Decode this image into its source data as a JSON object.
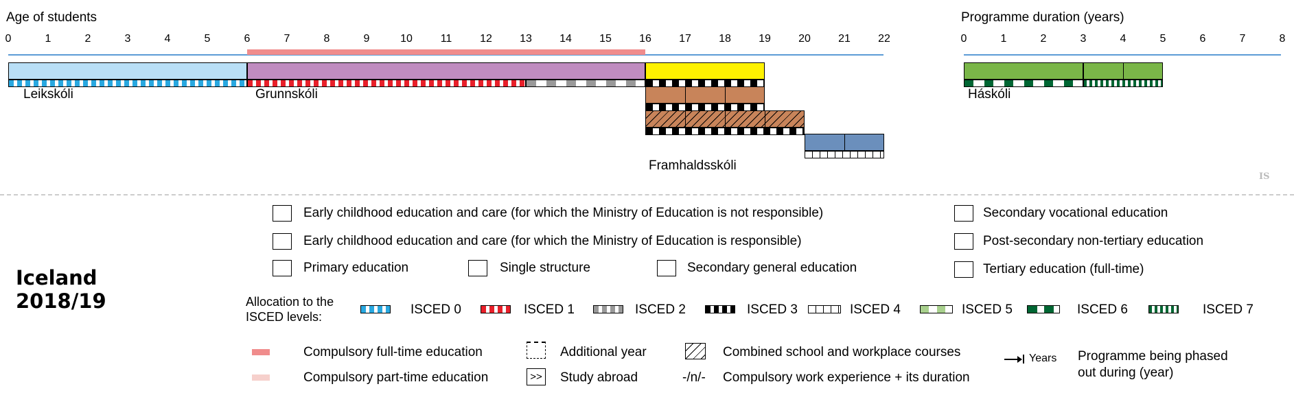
{
  "age_axis": {
    "title": "Age of students",
    "ticks": [
      "0",
      "1",
      "2",
      "3",
      "4",
      "5",
      "6",
      "7",
      "8",
      "9",
      "10",
      "11",
      "12",
      "13",
      "14",
      "15",
      "16",
      "17",
      "18",
      "19",
      "20",
      "21",
      "22"
    ]
  },
  "duration_axis": {
    "title": "Programme duration (years)",
    "ticks": [
      "0",
      "1",
      "2",
      "3",
      "4",
      "5",
      "6",
      "7",
      "8"
    ]
  },
  "compulsory_full_time": {
    "from_age": 6,
    "to_age": 16,
    "color": "#f08c8c"
  },
  "programmes": [
    {
      "name": "Leikskóli",
      "type": "ecec-ministry",
      "from": 0,
      "to": 6,
      "isced": "0",
      "color": "#b9dff6",
      "year_dividers": []
    },
    {
      "name": "Grunnskóli",
      "type": "single-structure",
      "from": 6,
      "to": 16,
      "isced_segments": [
        {
          "isced": "1",
          "from": 6,
          "to": 13
        },
        {
          "isced": "2",
          "from": 13,
          "to": 16
        }
      ],
      "color": "#c08cc0",
      "year_dividers": []
    },
    {
      "type": "secondary-general",
      "from": 16,
      "to": 19,
      "isced": "3",
      "color": "#fff200",
      "year_dividers": []
    },
    {
      "type": "secondary-vocational",
      "from": 16,
      "to": 19,
      "isced": "3",
      "color": "#c8845a",
      "year_dividers": [
        17,
        18
      ]
    },
    {
      "type": "secondary-vocational-combined",
      "from": 16,
      "to": 20,
      "isced": "3",
      "color": "#c8845a",
      "combined": true,
      "year_dividers": [
        17,
        18,
        19
      ]
    },
    {
      "type": "post-secondary",
      "from": 20,
      "to": 22,
      "isced": "4",
      "color": "#6b8fbc",
      "year_dividers": [
        21
      ]
    }
  ],
  "framhaldsskoli_label": "Framhaldsskóli",
  "tertiary": {
    "name": "Háskóli",
    "color": "#7ab648",
    "bachelor": {
      "from": 0,
      "to": 3,
      "isced": "6"
    },
    "master": {
      "from": 3,
      "to": 5,
      "isced": "7",
      "year_dividers": [
        4
      ]
    }
  },
  "country_code": "IS",
  "country": {
    "name": "Iceland",
    "year": "2018/19"
  },
  "legend": {
    "ecec_not_responsible": {
      "label": "Early childhood education and care (for which the Ministry of Education is not responsible)",
      "color": "#00a6e0"
    },
    "ecec_responsible": {
      "label": "Early childhood education and care (for which the Ministry of Education is responsible)",
      "color": "#b9dff6"
    },
    "primary": {
      "label": "Primary education",
      "color": "#f39c1f"
    },
    "single_structure": {
      "label": "Single structure",
      "color": "#c08cc0"
    },
    "secondary_general": {
      "label": "Secondary general education",
      "color": "#fff200"
    },
    "secondary_vocational": {
      "label": "Secondary vocational education",
      "color": "#c8845a"
    },
    "post_secondary": {
      "label": "Post-secondary non-tertiary education",
      "color": "#6b8fbc"
    },
    "tertiary": {
      "label": "Tertiary education (full-time)",
      "color": "#7ab648"
    },
    "allocation_title": "Allocation to the ISCED levels:",
    "isced_levels": [
      "ISCED 0",
      "ISCED 1",
      "ISCED 2",
      "ISCED 3",
      "ISCED 4",
      "ISCED 5",
      "ISCED 6",
      "ISCED 7"
    ],
    "compulsory_full_time": "Compulsory full-time education",
    "compulsory_part_time": "Compulsory part-time education",
    "additional_year": "Additional year",
    "study_abroad": "Study abroad",
    "study_abroad_symbol": ">>",
    "combined": "Combined school and workplace courses",
    "work_experience_symbol": "-/n/-",
    "work_experience": "Compulsory work experience + its duration",
    "years_symbol": "Years",
    "phased_out": "Programme being phased out during (year)"
  }
}
